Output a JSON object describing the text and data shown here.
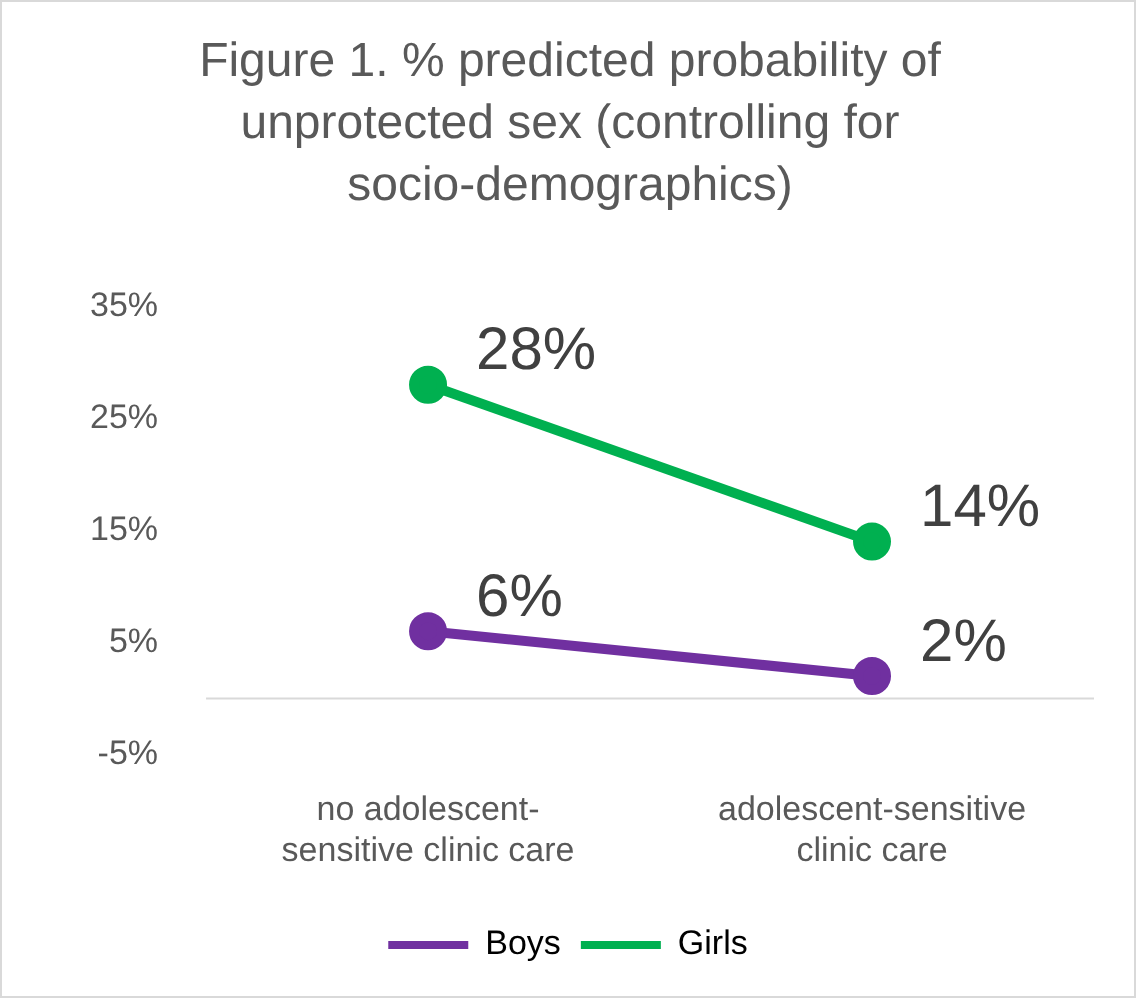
{
  "chart_data": {
    "type": "line",
    "title": "Figure 1. % predicted probability of unprotected sex (controlling for socio-demographics)",
    "categories": [
      "no adolescent-sensitive clinic care",
      "adolescent-sensitive clinic care"
    ],
    "series": [
      {
        "name": "Boys",
        "color": "#7030a0",
        "values": [
          6,
          2
        ],
        "value_labels": [
          "6%",
          "2%"
        ]
      },
      {
        "name": "Girls",
        "color": "#00b050",
        "values": [
          28,
          14
        ],
        "value_labels": [
          "28%",
          "14%"
        ]
      }
    ],
    "ylim": [
      -5,
      35
    ],
    "yticks": [
      {
        "value": -5,
        "label": "-5%"
      },
      {
        "value": 5,
        "label": "5%"
      },
      {
        "value": 15,
        "label": "15%"
      },
      {
        "value": 25,
        "label": "25%"
      },
      {
        "value": 35,
        "label": "35%"
      }
    ],
    "grid": false,
    "legend": "bottom",
    "marker": "circle",
    "line_style": "solid"
  }
}
